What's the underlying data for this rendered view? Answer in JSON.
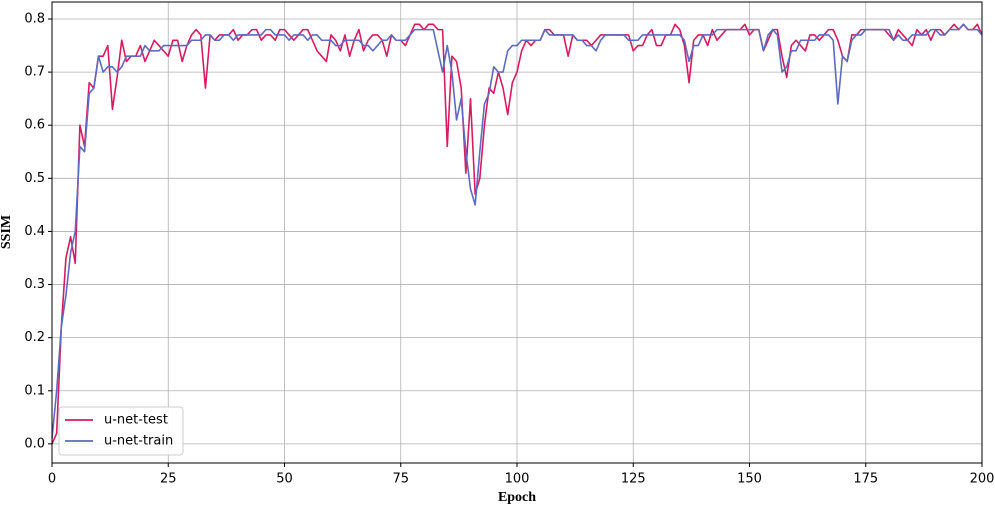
{
  "chart_data": {
    "type": "line",
    "x_label": "Epoch",
    "y_label": "SSIM",
    "x": [
      0,
      1,
      2,
      3,
      4,
      5,
      6,
      7,
      8,
      9,
      10,
      11,
      12,
      13,
      14,
      15,
      16,
      17,
      18,
      19,
      20,
      21,
      22,
      23,
      24,
      25,
      26,
      27,
      28,
      29,
      30,
      31,
      32,
      33,
      34,
      35,
      36,
      37,
      38,
      39,
      40,
      41,
      42,
      43,
      44,
      45,
      46,
      47,
      48,
      49,
      50,
      51,
      52,
      53,
      54,
      55,
      56,
      57,
      58,
      59,
      60,
      61,
      62,
      63,
      64,
      65,
      66,
      67,
      68,
      69,
      70,
      71,
      72,
      73,
      74,
      75,
      76,
      77,
      78,
      79,
      80,
      81,
      82,
      83,
      84,
      85,
      86,
      87,
      88,
      89,
      90,
      91,
      92,
      93,
      94,
      95,
      96,
      97,
      98,
      99,
      100,
      101,
      102,
      103,
      104,
      105,
      106,
      107,
      108,
      109,
      110,
      111,
      112,
      113,
      114,
      115,
      116,
      117,
      118,
      119,
      120,
      121,
      122,
      123,
      124,
      125,
      126,
      127,
      128,
      129,
      130,
      131,
      132,
      133,
      134,
      135,
      136,
      137,
      138,
      139,
      140,
      141,
      142,
      143,
      144,
      145,
      146,
      147,
      148,
      149,
      150,
      151,
      152,
      153,
      154,
      155,
      156,
      157,
      158,
      159,
      160,
      161,
      162,
      163,
      164,
      165,
      166,
      167,
      168,
      169,
      170,
      171,
      172,
      173,
      174,
      175,
      176,
      177,
      178,
      179,
      180,
      181,
      182,
      183,
      184,
      185,
      186,
      187,
      188,
      189,
      190,
      191,
      192,
      193,
      194,
      195,
      196,
      197,
      198,
      199,
      200
    ],
    "series": [
      {
        "name": "u-net-test",
        "color": "#d81b60",
        "values": [
          0.0,
          0.02,
          0.22,
          0.35,
          0.39,
          0.34,
          0.6,
          0.56,
          0.68,
          0.67,
          0.73,
          0.73,
          0.75,
          0.63,
          0.69,
          0.76,
          0.72,
          0.73,
          0.73,
          0.75,
          0.72,
          0.74,
          0.76,
          0.75,
          0.74,
          0.73,
          0.76,
          0.76,
          0.72,
          0.75,
          0.77,
          0.78,
          0.77,
          0.67,
          0.77,
          0.76,
          0.77,
          0.77,
          0.77,
          0.78,
          0.76,
          0.77,
          0.77,
          0.78,
          0.78,
          0.76,
          0.77,
          0.77,
          0.76,
          0.78,
          0.78,
          0.77,
          0.76,
          0.77,
          0.78,
          0.78,
          0.76,
          0.74,
          0.73,
          0.72,
          0.77,
          0.76,
          0.74,
          0.77,
          0.73,
          0.76,
          0.78,
          0.74,
          0.76,
          0.77,
          0.77,
          0.76,
          0.73,
          0.77,
          0.76,
          0.76,
          0.75,
          0.77,
          0.79,
          0.79,
          0.78,
          0.79,
          0.79,
          0.78,
          0.78,
          0.56,
          0.73,
          0.72,
          0.67,
          0.51,
          0.65,
          0.47,
          0.5,
          0.6,
          0.67,
          0.66,
          0.7,
          0.67,
          0.62,
          0.68,
          0.7,
          0.74,
          0.76,
          0.75,
          0.76,
          0.76,
          0.78,
          0.78,
          0.77,
          0.77,
          0.77,
          0.73,
          0.77,
          0.76,
          0.76,
          0.76,
          0.75,
          0.76,
          0.77,
          0.77,
          0.77,
          0.77,
          0.77,
          0.77,
          0.77,
          0.74,
          0.75,
          0.75,
          0.77,
          0.78,
          0.75,
          0.75,
          0.77,
          0.77,
          0.79,
          0.78,
          0.75,
          0.68,
          0.76,
          0.77,
          0.77,
          0.75,
          0.78,
          0.76,
          0.77,
          0.78,
          0.78,
          0.78,
          0.78,
          0.79,
          0.77,
          0.78,
          0.78,
          0.74,
          0.76,
          0.78,
          0.78,
          0.73,
          0.69,
          0.75,
          0.76,
          0.75,
          0.74,
          0.77,
          0.77,
          0.76,
          0.77,
          0.78,
          0.78,
          0.76,
          0.73,
          0.72,
          0.77,
          0.77,
          0.78,
          0.78,
          0.78,
          0.78,
          0.78,
          0.78,
          0.77,
          0.76,
          0.78,
          0.77,
          0.76,
          0.75,
          0.78,
          0.77,
          0.78,
          0.76,
          0.78,
          0.78,
          0.77,
          0.78,
          0.79,
          0.78,
          0.79,
          0.78,
          0.78,
          0.79,
          0.77
        ]
      },
      {
        "name": "u-net-train",
        "color": "#5c6bc0",
        "values": [
          0.01,
          0.1,
          0.22,
          0.28,
          0.36,
          0.4,
          0.56,
          0.55,
          0.66,
          0.67,
          0.73,
          0.7,
          0.71,
          0.71,
          0.7,
          0.71,
          0.73,
          0.73,
          0.73,
          0.73,
          0.75,
          0.74,
          0.74,
          0.74,
          0.75,
          0.75,
          0.75,
          0.75,
          0.75,
          0.75,
          0.76,
          0.76,
          0.76,
          0.77,
          0.77,
          0.76,
          0.76,
          0.77,
          0.77,
          0.76,
          0.77,
          0.77,
          0.77,
          0.77,
          0.77,
          0.77,
          0.78,
          0.78,
          0.77,
          0.77,
          0.77,
          0.76,
          0.77,
          0.77,
          0.77,
          0.76,
          0.77,
          0.77,
          0.76,
          0.76,
          0.76,
          0.75,
          0.75,
          0.76,
          0.76,
          0.76,
          0.76,
          0.75,
          0.75,
          0.74,
          0.75,
          0.76,
          0.76,
          0.77,
          0.76,
          0.76,
          0.76,
          0.77,
          0.78,
          0.78,
          0.78,
          0.78,
          0.78,
          0.74,
          0.7,
          0.75,
          0.7,
          0.61,
          0.65,
          0.55,
          0.48,
          0.45,
          0.55,
          0.64,
          0.66,
          0.71,
          0.7,
          0.7,
          0.74,
          0.75,
          0.75,
          0.76,
          0.76,
          0.76,
          0.76,
          0.76,
          0.78,
          0.77,
          0.77,
          0.77,
          0.77,
          0.77,
          0.77,
          0.76,
          0.76,
          0.75,
          0.75,
          0.74,
          0.76,
          0.77,
          0.77,
          0.77,
          0.77,
          0.77,
          0.76,
          0.76,
          0.76,
          0.77,
          0.77,
          0.77,
          0.77,
          0.77,
          0.77,
          0.77,
          0.77,
          0.77,
          0.76,
          0.72,
          0.75,
          0.75,
          0.77,
          0.77,
          0.77,
          0.78,
          0.78,
          0.78,
          0.78,
          0.78,
          0.78,
          0.78,
          0.78,
          0.78,
          0.78,
          0.74,
          0.77,
          0.78,
          0.77,
          0.7,
          0.71,
          0.74,
          0.74,
          0.76,
          0.76,
          0.76,
          0.76,
          0.77,
          0.77,
          0.77,
          0.76,
          0.64,
          0.73,
          0.72,
          0.76,
          0.77,
          0.77,
          0.78,
          0.78,
          0.78,
          0.78,
          0.78,
          0.78,
          0.76,
          0.77,
          0.76,
          0.76,
          0.77,
          0.77,
          0.77,
          0.77,
          0.78,
          0.78,
          0.77,
          0.77,
          0.78,
          0.78,
          0.78,
          0.79,
          0.78,
          0.78,
          0.78,
          0.77
        ]
      }
    ],
    "xlim": [
      0,
      200
    ],
    "xticks": [
      0,
      25,
      50,
      75,
      100,
      125,
      150,
      175,
      200
    ],
    "ylim": [
      -0.036,
      0.832
    ],
    "yticks": [
      {
        "value": 0,
        "label": "0.0"
      },
      0.1,
      0.2,
      0.3,
      0.4,
      0.5,
      0.6,
      0.7,
      0.8
    ],
    "grid": true,
    "legend": "lower left"
  }
}
